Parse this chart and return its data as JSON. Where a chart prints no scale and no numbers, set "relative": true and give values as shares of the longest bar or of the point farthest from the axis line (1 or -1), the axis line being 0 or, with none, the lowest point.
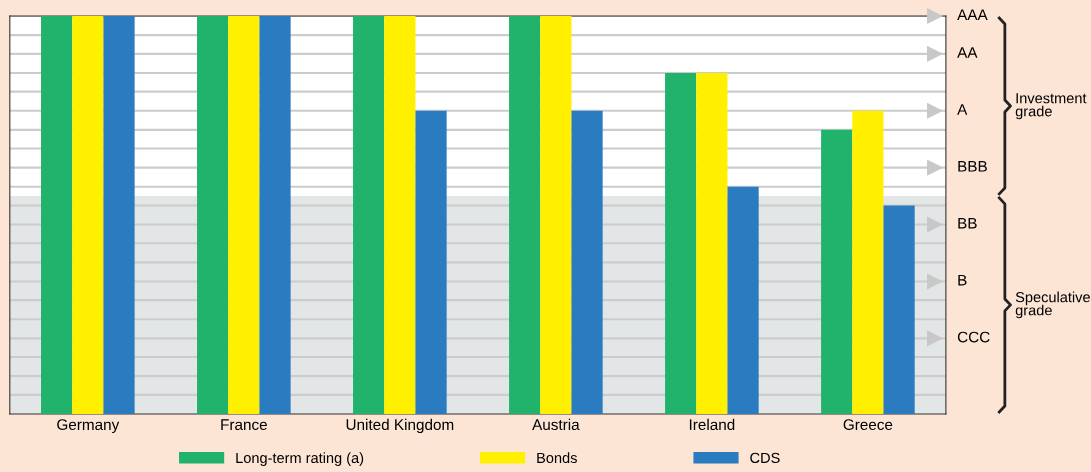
{
  "chart_data": {
    "type": "bar",
    "relative": true,
    "categories": [
      "Germany",
      "France",
      "United Kingdom",
      "Austria",
      "Ireland",
      "Greece"
    ],
    "series": [
      {
        "name": "Long-term rating (a)",
        "color": "#21b26b",
        "values": [
          1,
          1,
          1,
          1,
          0.857,
          0.714
        ]
      },
      {
        "name": "Bonds",
        "color": "#fff000",
        "values": [
          1,
          1,
          1,
          1,
          0.857,
          0.762
        ]
      },
      {
        "name": "CDS",
        "color": "#2b7bc0",
        "values": [
          1,
          1,
          0.762,
          0.762,
          0.571,
          0.524
        ]
      }
    ],
    "bands": [
      {
        "axis": "y",
        "from": 0,
        "to": 0.548,
        "color": "#e3e6e7"
      }
    ],
    "ref_lines": [
      {
        "axis": "y",
        "value": 0.048,
        "color": "#cccccc"
      },
      {
        "axis": "y",
        "value": 0.095,
        "color": "#cccccc"
      },
      {
        "axis": "y",
        "value": 0.143,
        "color": "#cccccc"
      },
      {
        "axis": "y",
        "value": 0.19,
        "color": "#cccccc",
        "label": "CCC"
      },
      {
        "axis": "y",
        "value": 0.238,
        "color": "#cccccc"
      },
      {
        "axis": "y",
        "value": 0.286,
        "color": "#cccccc"
      },
      {
        "axis": "y",
        "value": 0.333,
        "color": "#cccccc",
        "label": "B"
      },
      {
        "axis": "y",
        "value": 0.381,
        "color": "#cccccc"
      },
      {
        "axis": "y",
        "value": 0.429,
        "color": "#cccccc"
      },
      {
        "axis": "y",
        "value": 0.476,
        "color": "#cccccc",
        "label": "BB"
      },
      {
        "axis": "y",
        "value": 0.524,
        "color": "#cccccc"
      },
      {
        "axis": "y",
        "value": 0.571,
        "color": "#cccccc"
      },
      {
        "axis": "y",
        "value": 0.619,
        "color": "#cccccc",
        "label": "BBB"
      },
      {
        "axis": "y",
        "value": 0.667,
        "color": "#cccccc"
      },
      {
        "axis": "y",
        "value": 0.714,
        "color": "#cccccc"
      },
      {
        "axis": "y",
        "value": 0.762,
        "color": "#cccccc",
        "label": "A"
      },
      {
        "axis": "y",
        "value": 0.81,
        "color": "#cccccc"
      },
      {
        "axis": "y",
        "value": 0.857,
        "color": "#cccccc"
      },
      {
        "axis": "y",
        "value": 0.905,
        "color": "#cccccc",
        "label": "AA"
      },
      {
        "axis": "y",
        "value": 0.952,
        "color": "#cccccc"
      },
      {
        "axis": "y",
        "value": 1,
        "color": "#cccccc",
        "label": "AAA"
      }
    ],
    "annotations": [
      "Investment grade",
      "Speculative grade"
    ],
    "legend": "bottom"
  }
}
